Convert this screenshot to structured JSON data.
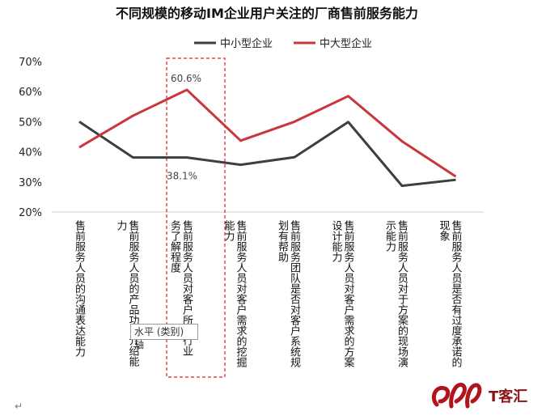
{
  "chart_data": {
    "type": "line",
    "title": "不同规模的移动IM企业用户关注的厂商售前服务能力",
    "categories": [
      "售前服务人员的沟通表达能力",
      "售前服务人员的产品功能介绍能力",
      "售前服务人员对客户所在行业务了解程度",
      "售前服务人员对客户需求的挖掘能力",
      "售前服务团队是否对客户系统规划有帮助",
      "售前服务人员对客户需求的方案设计能力",
      "售前服务人员对于方案的现场演示能力",
      "售前服务人员是否有过度承诺的现象"
    ],
    "category_display": [
      [
        "售前服务人员的沟通表达能力"
      ],
      [
        "售前服务人员的产品功",
        "力"
      ],
      [
        "售前服务人员对客户所",
        "务了解程度"
      ],
      [
        "售前服务人员对客户需求的挖掘",
        "能力"
      ],
      [
        "售前服务团队是否对客户系统规",
        "划有帮助"
      ],
      [
        "售前服务人员对客户需求的方案",
        "设计能力"
      ],
      [
        "售前服务人员对于方案的现场演",
        "示能力"
      ],
      [
        "售前服务人员是否有过度承诺的",
        "现象"
      ]
    ],
    "category_extra": [
      "",
      "介绍能",
      "行业",
      "",
      "",
      "",
      "",
      ""
    ],
    "series": [
      {
        "name": "中小型企业",
        "color": "#3b3f3f",
        "values": [
          50.0,
          38.1,
          38.1,
          35.7,
          38.2,
          49.9,
          28.7,
          30.7
        ]
      },
      {
        "name": "中大型企业",
        "color": "#c9373d",
        "values": [
          41.5,
          52.0,
          60.6,
          43.7,
          50.0,
          58.5,
          43.5,
          31.8
        ]
      }
    ],
    "ylim": [
      20,
      70
    ],
    "yticks": [
      "20%",
      "30%",
      "40%",
      "50%",
      "60%",
      "70%"
    ],
    "data_labels": [
      "60.6%",
      "38.1%"
    ],
    "legend_position": "top",
    "grid": false,
    "highlight_category": 2
  },
  "tooltip": "水平 (类别) 轴",
  "watermark": "T客汇",
  "paragraph_mark": "↵"
}
